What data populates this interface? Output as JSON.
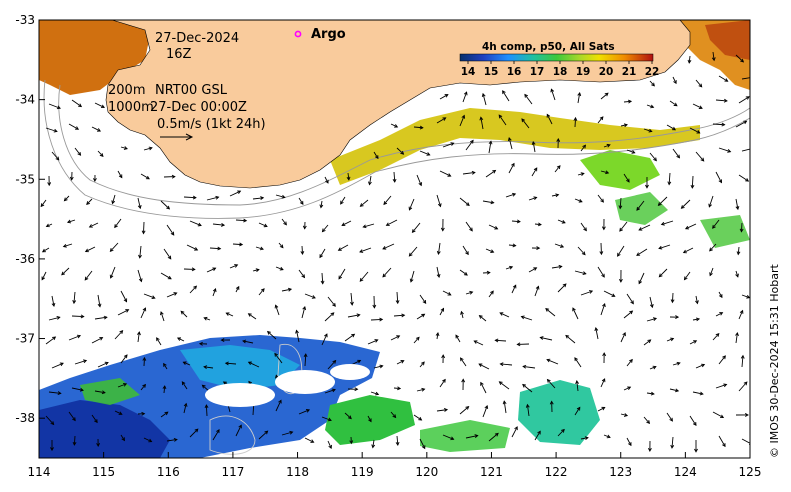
{
  "map": {
    "lon_ticks": [
      "114",
      "115",
      "116",
      "117",
      "118",
      "119",
      "120",
      "121",
      "122",
      "123",
      "124",
      "125"
    ],
    "lat_ticks": [
      "-33",
      "-34",
      "-35",
      "-36",
      "-37",
      "-38"
    ],
    "lon_range": [
      114,
      125
    ],
    "lat_range": [
      -38.5,
      -33
    ]
  },
  "annotations": {
    "date": "27-Dec-2024",
    "hour": "16Z",
    "iso200": "200m",
    "iso1000": "1000m",
    "model": "NRT00 GSL",
    "model_time": "27-Dec 00:00Z",
    "scale": "0.5m/s (1kt 24h)"
  },
  "legend": {
    "argo_label": "Argo",
    "argo_color": "#ff00ff",
    "title": "4h comp, p50, All Sats",
    "ticks": [
      "14",
      "15",
      "16",
      "17",
      "18",
      "19",
      "20",
      "21",
      "22"
    ]
  },
  "colors": {
    "land": "#f9cb9c",
    "isobath": "#999999"
  },
  "credit": "© IMOS 30-Dec-2024 15:31 Hobart"
}
